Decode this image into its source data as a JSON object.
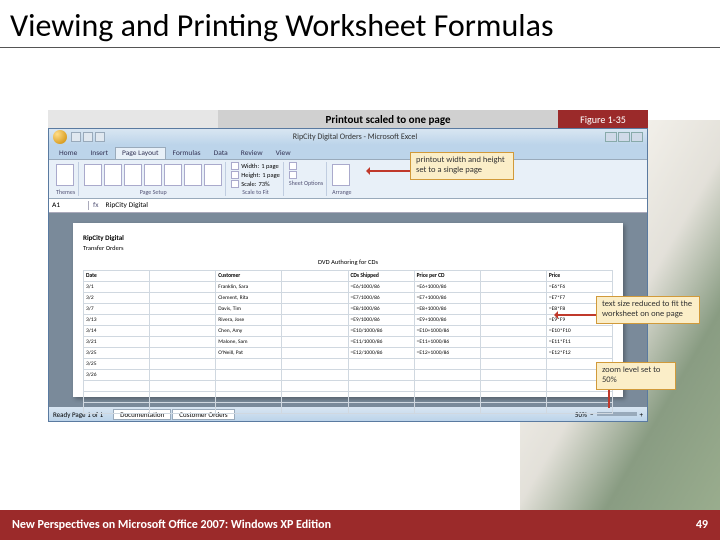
{
  "slide": {
    "title": "Viewing and Printing Worksheet Formulas"
  },
  "figure": {
    "caption": "Printout scaled to one page",
    "label": "Figure 1-35"
  },
  "excel": {
    "doc_title": "RipCity Digital Orders - Microsoft Excel",
    "tabs": [
      "Home",
      "Insert",
      "Page Layout",
      "Formulas",
      "Data",
      "Review",
      "View"
    ],
    "active_tab": "Page Layout",
    "ribbon": {
      "themes_label": "Themes",
      "pagesetup_label": "Page Setup",
      "pagesetup_items": [
        "Margins",
        "Orientation",
        "Size",
        "Print Area",
        "Breaks",
        "Background",
        "Print Titles"
      ],
      "scale_label": "Scale to Fit",
      "scale_width_label": "Width:",
      "scale_width_value": "1 page",
      "scale_height_label": "Height:",
      "scale_height_value": "1 page",
      "scale_scale_label": "Scale:",
      "scale_scale_value": "73%",
      "sheet_label": "Sheet Options",
      "arrange_label": "Arrange"
    },
    "namebox": "A1",
    "formula_content": "RipCity Digital",
    "sheet": {
      "company": "RipCity Digital",
      "subtitle": "Transfer Orders",
      "col_header": "DVD Authoring for CDs",
      "headers": [
        "Date",
        "",
        "Customer",
        "",
        "CDs Shipped",
        "Price per CD",
        "",
        "Price"
      ],
      "rows": [
        [
          "3/1",
          "",
          "Franklin, Sara",
          "",
          "=E6/1000/86",
          "=E6+1000/86",
          "",
          "=E6*F6"
        ],
        [
          "3/2",
          "",
          "Clement, Rita",
          "",
          "=E7/1000/86",
          "=E7+1000/86",
          "",
          "=E7*F7"
        ],
        [
          "3/7",
          "",
          "Davis, Tim",
          "",
          "=E8/1000/86",
          "=E8+1000/86",
          "",
          "=E8*F8"
        ],
        [
          "3/13",
          "",
          "Rivera, Jose",
          "",
          "=E9/1000/86",
          "=E9+1000/86",
          "",
          "=E9*F9"
        ],
        [
          "3/14",
          "",
          "Chen, Amy",
          "",
          "=E10/1000/86",
          "=E10+1000/86",
          "",
          "=E10*F10"
        ],
        [
          "3/21",
          "",
          "Malone, Sam",
          "",
          "=E11/1000/86",
          "=E11+1000/86",
          "",
          "=E11*F11"
        ],
        [
          "3/25",
          "",
          "O'Neill, Pat",
          "",
          "=E12/1000/86",
          "=E12+1000/86",
          "",
          "=E12*F12"
        ],
        [
          "3/25",
          "",
          "",
          "",
          "",
          "",
          "",
          ""
        ],
        [
          "3/26",
          "",
          "",
          "",
          "",
          "",
          "",
          ""
        ]
      ]
    },
    "sheet_tabs": [
      "Documentation",
      "Customer Orders"
    ],
    "status_left": "Ready   Page 1 of 1",
    "zoom": "50%"
  },
  "callouts": {
    "c1": "printout width and height set to a single page",
    "c2": "text size reduced to fit the worksheet on one page",
    "c3": "zoom level set to 50%"
  },
  "footer": {
    "text": "New Perspectives on Microsoft Office 2007: Windows XP Edition",
    "page": "49"
  },
  "colors": {
    "footer_bg": "#9b2a2a",
    "callout_bg": "#fbeec8",
    "callout_border": "#d19a3a",
    "arrow": "#c0392b",
    "excel_chrome": "#bcd4ea"
  }
}
